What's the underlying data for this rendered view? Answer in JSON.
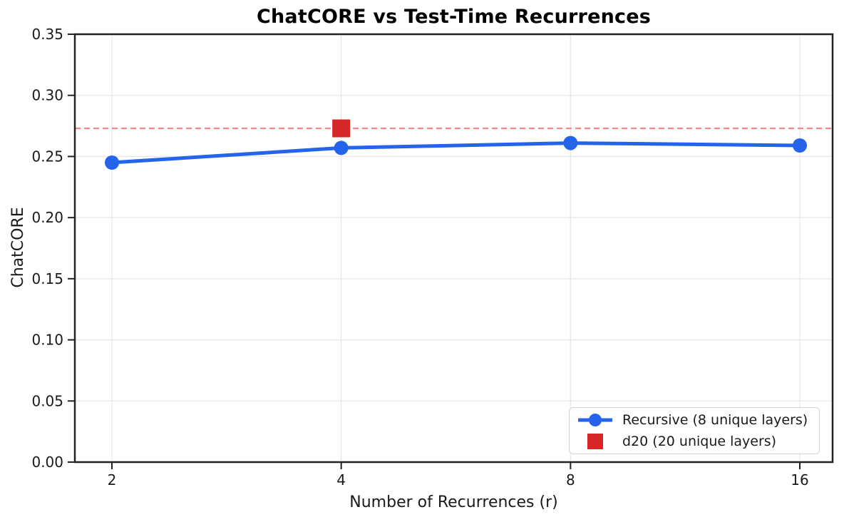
{
  "figure": {
    "background": "#ffffff"
  },
  "chart_data": {
    "type": "line",
    "title": "ChatCORE vs Test-Time Recurrences",
    "xlabel": "Number of Recurrences (r)",
    "ylabel": "ChatCORE",
    "x_scale": "log2",
    "x_ticks": [
      2,
      4,
      8,
      16
    ],
    "x_tick_labels": [
      "2",
      "4",
      "8",
      "16"
    ],
    "y_ticks": [
      0.0,
      0.05,
      0.1,
      0.15,
      0.2,
      0.25,
      0.3,
      0.35
    ],
    "y_tick_labels": [
      "0.00",
      "0.05",
      "0.10",
      "0.15",
      "0.20",
      "0.25",
      "0.30",
      "0.35"
    ],
    "ylim": [
      0,
      0.35
    ],
    "grid": true,
    "legend_position": "lower right",
    "series": [
      {
        "name": "Recursive (8 unique layers)",
        "type": "line",
        "marker": "circle",
        "color": "#2563eb",
        "x": [
          2,
          4,
          8,
          16
        ],
        "values": [
          0.245,
          0.257,
          0.261,
          0.259
        ]
      },
      {
        "name": "d20 (20 unique layers)",
        "type": "scatter",
        "marker": "square",
        "color": "#d62728",
        "x": [
          4
        ],
        "values": [
          0.273
        ]
      }
    ],
    "reference_line": {
      "y": 0.273,
      "style": "dashed",
      "color": "#f28a8a"
    }
  },
  "style_colors": {
    "grid": "#e7e7e7",
    "spine": "#222222",
    "tick_text": "#1a1a1a"
  }
}
